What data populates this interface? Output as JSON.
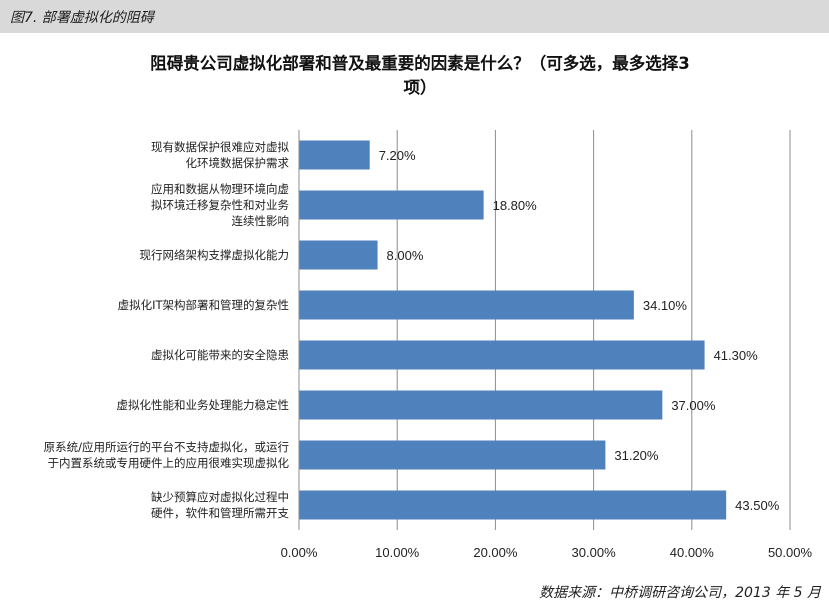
{
  "figure_caption": "图7. 部署虚拟化的阻碍",
  "source_note": "数据来源：中桥调研咨询公司，2013 年 5 月",
  "chart_data": {
    "type": "bar",
    "orientation": "horizontal",
    "title": "阻碍贵公司虚拟化部署和普及最重要的因素是什么？（可多选，最多选择3项）",
    "title_lines": [
      "阻碍贵公司虚拟化部署和普及最重要的因素是什么？（可多选，最多选择3",
      "项）"
    ],
    "categories": [
      [
        "现有数据保护很难应对虚拟",
        "化环境数据保护需求"
      ],
      [
        "应用和数据从物理环境向虚",
        "拟环境迁移复杂性和对业务",
        "连续性影响"
      ],
      [
        "现行网络架构支撑虚拟化能力"
      ],
      [
        "虚拟化IT架构部署和管理的复杂性"
      ],
      [
        "虚拟化可能带来的安全隐患"
      ],
      [
        "虚拟化性能和业务处理能力稳定性"
      ],
      [
        "原系统/应用所运行的平台不支持虚拟化，或运行",
        "于内置系统或专用硬件上的应用很难实现虚拟化"
      ],
      [
        "缺少预算应对虚拟化过程中",
        "硬件，软件和管理所需开支"
      ]
    ],
    "values": [
      7.2,
      18.8,
      8.0,
      34.1,
      41.3,
      37.0,
      31.2,
      43.5
    ],
    "value_labels": [
      "7.20%",
      "18.80%",
      "8.00%",
      "34.10%",
      "41.30%",
      "37.00%",
      "31.20%",
      "43.50%"
    ],
    "x_ticks": [
      0,
      10,
      20,
      30,
      40,
      50
    ],
    "x_tick_labels": [
      "0.00%",
      "10.00%",
      "20.00%",
      "30.00%",
      "40.00%",
      "50.00%"
    ],
    "xlim": [
      0,
      50
    ],
    "grid": "vertical",
    "bar_color": "#4f81bd",
    "grid_color": "#8c8c8c"
  }
}
